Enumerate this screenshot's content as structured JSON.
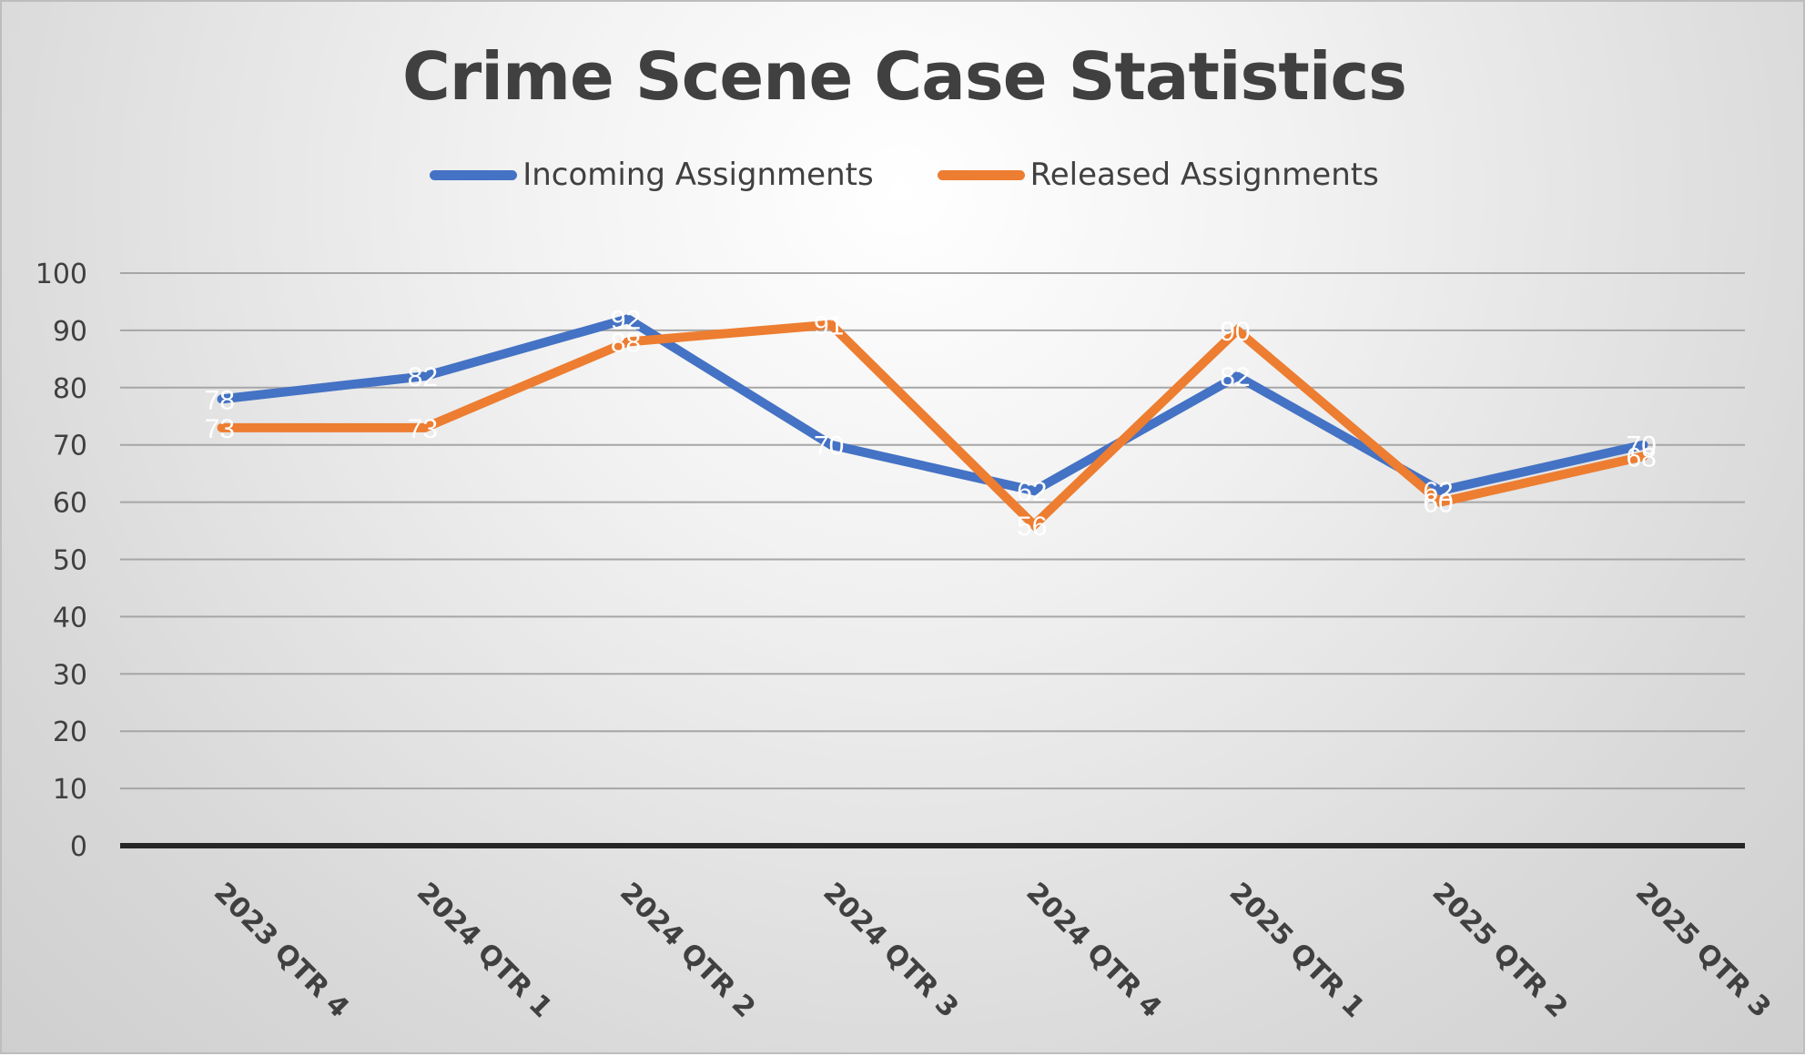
{
  "chart_data": {
    "type": "line",
    "title": "Crime Scene Case Statistics",
    "categories": [
      "2023 QTR 4",
      "2024 QTR 1",
      "2024 QTR 2",
      "2024 QTR 3",
      "2024 QTR 4",
      "2025 QTR 1",
      "2025 QTR 2",
      "2025 QTR 3"
    ],
    "series": [
      {
        "name": "Incoming Assignments",
        "color": "#4472c4",
        "values": [
          78,
          82,
          92,
          70,
          62,
          82,
          62,
          70
        ]
      },
      {
        "name": "Released Assignments",
        "color": "#ed7d31",
        "values": [
          73,
          73,
          88,
          91,
          56,
          90,
          60,
          68
        ]
      }
    ],
    "ylim": [
      0,
      100
    ],
    "yticks": [
      0,
      10,
      20,
      30,
      40,
      50,
      60,
      70,
      80,
      90,
      100
    ],
    "xlabel": "",
    "ylabel": "",
    "grid": true,
    "legend_position": "top",
    "data_labels": true
  }
}
